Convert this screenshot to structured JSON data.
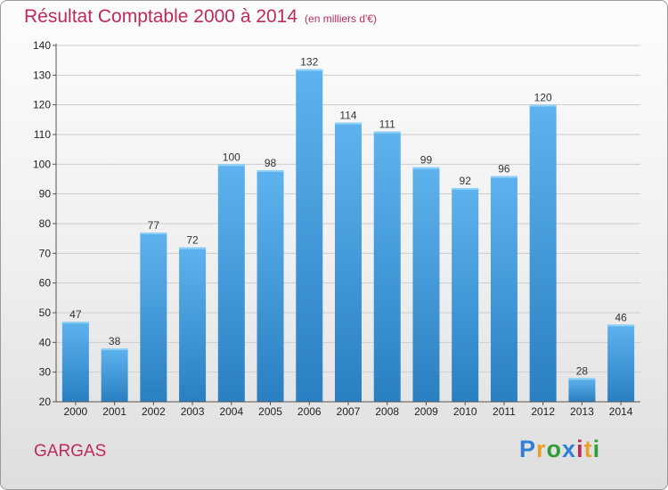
{
  "title": "Résultat Comptable 2000 à 2014",
  "unit_note": "(en milliers d'€)",
  "city": "GARGAS",
  "brand": {
    "letters": [
      "P",
      "r",
      "o",
      "x",
      "i",
      "t",
      "i"
    ],
    "colors": [
      "#2f7fd6",
      "#e8a12b",
      "#2f9e3a",
      "#2f7fd6",
      "#c0285a",
      "#e8a12b",
      "#2f9e3a"
    ]
  },
  "colors": {
    "title": "#c0285a",
    "bar_light": "#5eb3ee",
    "bar_dark": "#2a7fc1",
    "grid": "#cccccc"
  },
  "chart_data": {
    "type": "bar",
    "title": "Résultat Comptable 2000 à 2014",
    "subtitle": "(en milliers d'€)",
    "xlabel": "",
    "ylabel": "",
    "categories": [
      "2000",
      "2001",
      "2002",
      "2003",
      "2004",
      "2005",
      "2006",
      "2007",
      "2008",
      "2009",
      "2010",
      "2011",
      "2012",
      "2013",
      "2014"
    ],
    "values": [
      47,
      38,
      77,
      72,
      100,
      98,
      132,
      114,
      111,
      99,
      92,
      96,
      120,
      28,
      46
    ],
    "ylim": [
      20,
      140
    ],
    "yticks": [
      20,
      30,
      40,
      50,
      60,
      70,
      80,
      90,
      100,
      110,
      120,
      130,
      140
    ],
    "grid": true,
    "data_labels": true
  }
}
